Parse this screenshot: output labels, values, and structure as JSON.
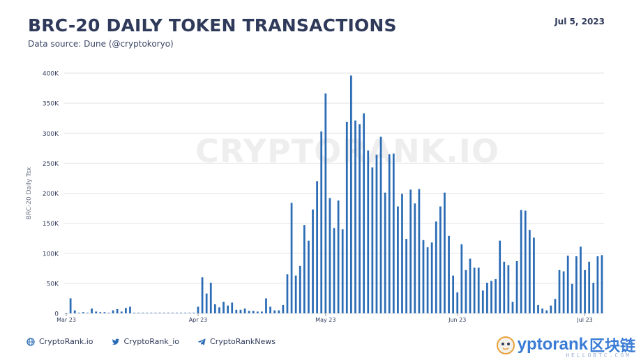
{
  "header": {
    "title": "BRC-20 DAILY TOKEN TRANSACTIONS",
    "subtitle": "Data source: Dune (@cryptokoryo)",
    "date": "Jul 5, 2023"
  },
  "watermark": "CRYPTORANK.IO",
  "footer": {
    "links": [
      {
        "icon": "globe-icon",
        "label": "CryptoRank.io"
      },
      {
        "icon": "twitter-icon",
        "label": "CryptoRank_io"
      },
      {
        "icon": "telegram-icon",
        "label": "CryptoRankNews"
      }
    ]
  },
  "logo": {
    "text": "yptorank",
    "chinese": "区块链",
    "sub": "HELLOBTC.COM"
  },
  "colors": {
    "bar": "#2b6cb5",
    "grid": "#e3e3e3",
    "text": "#2f3a5a"
  },
  "chart_data": {
    "type": "bar",
    "title": "BRC-20 DAILY TOKEN TRANSACTIONS",
    "ylabel": "BRC-20 Daily Tsx",
    "xlabel": "",
    "ylim": [
      0,
      400000
    ],
    "yticks": [
      "0",
      "50K",
      "100K",
      "150K",
      "200K",
      "250K",
      "300K",
      "350K",
      "400K"
    ],
    "xtick_labels": [
      {
        "label": "Mar 23",
        "index": 0
      },
      {
        "label": "Apr 23",
        "index": 31
      },
      {
        "label": "May 23",
        "index": 61
      },
      {
        "label": "Jun 23",
        "index": 92
      },
      {
        "label": "Jul 23",
        "index": 122
      }
    ],
    "start_date": "2023-03-01",
    "values": [
      0,
      25000,
      5000,
      1000,
      2000,
      1000,
      8000,
      3000,
      2000,
      2000,
      1000,
      5000,
      7000,
      3000,
      9000,
      11000,
      1000,
      1000,
      1000,
      1000,
      1000,
      1000,
      1000,
      1000,
      1000,
      1000,
      1000,
      1000,
      1000,
      1000,
      1000,
      11000,
      60000,
      33000,
      51000,
      15000,
      10000,
      19000,
      13000,
      18000,
      6000,
      6000,
      8000,
      4000,
      4000,
      3000,
      3000,
      25000,
      11000,
      5000,
      5000,
      14000,
      65000,
      184000,
      63000,
      79000,
      147000,
      121000,
      173000,
      220000,
      303000,
      366000,
      192000,
      142000,
      188000,
      140000,
      319000,
      396000,
      321000,
      315000,
      333000,
      271000,
      243000,
      264000,
      294000,
      201000,
      265000,
      266000,
      178000,
      199000,
      124000,
      206000,
      183000,
      207000,
      122000,
      110000,
      118000,
      153000,
      178000,
      201000,
      129000,
      63000,
      35000,
      115000,
      72000,
      91000,
      76000,
      76000,
      38000,
      51000,
      54000,
      57000,
      121000,
      86000,
      80000,
      19000,
      87000,
      172000,
      171000,
      139000,
      126000,
      14000,
      8000,
      5000,
      13000,
      24000,
      72000,
      70000,
      96000,
      49000,
      95000,
      111000,
      72000,
      86000,
      51000,
      95000,
      97000
    ]
  }
}
